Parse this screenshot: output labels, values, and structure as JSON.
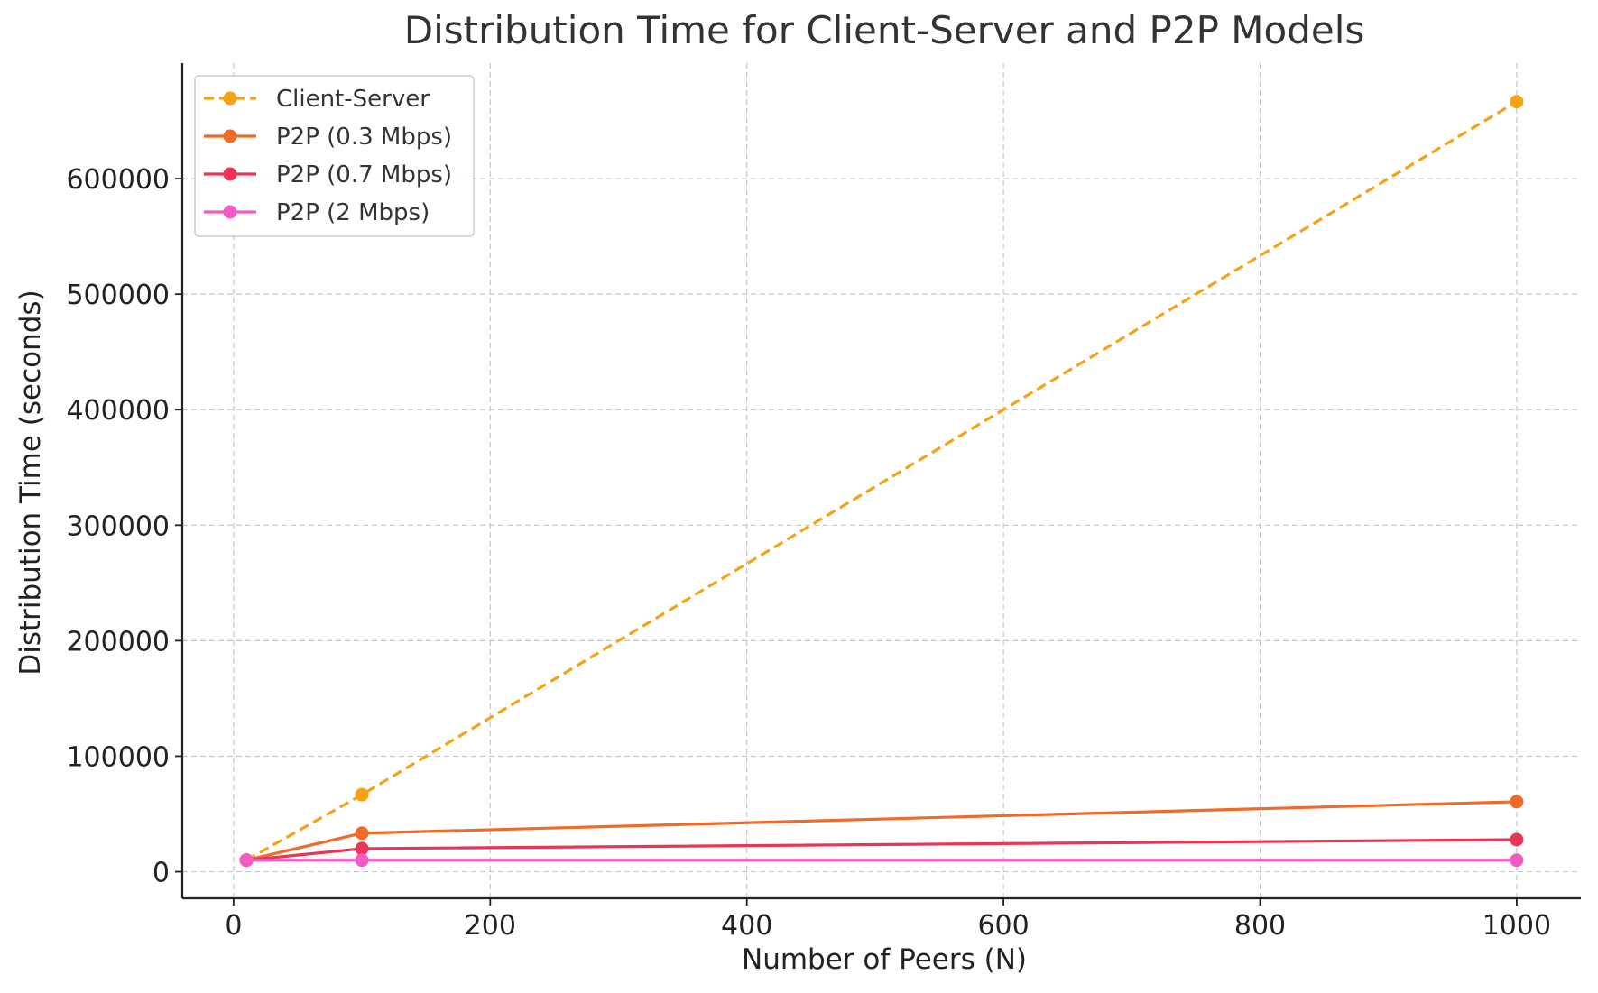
{
  "chart_data": {
    "type": "line",
    "title": "Distribution Time for Client-Server and P2P Models",
    "xlabel": "Number of Peers (N)",
    "ylabel": "Distribution Time (seconds)",
    "x": [
      10,
      100,
      1000
    ],
    "xlim": [
      -40,
      1050
    ],
    "ylim": [
      -23000,
      700000
    ],
    "xticks": [
      0,
      200,
      400,
      600,
      800,
      1000
    ],
    "xtick_labels": [
      "0",
      "200",
      "400",
      "600",
      "800",
      "1000"
    ],
    "yticks": [
      0,
      100000,
      200000,
      300000,
      400000,
      500000,
      600000
    ],
    "ytick_labels": [
      "0",
      "100000",
      "200000",
      "300000",
      "400000",
      "500000",
      "600000"
    ],
    "grid": true,
    "legend_position": "top-left",
    "series": [
      {
        "name": "Client-Server",
        "values": [
          10000,
          66667,
          666667
        ],
        "color": "#f5a316",
        "style": "dashed"
      },
      {
        "name": "P2P (0.3 Mbps)",
        "values": [
          10000,
          33333,
          60606
        ],
        "color": "#f06a28",
        "style": "solid"
      },
      {
        "name": "P2P (0.7 Mbps)",
        "values": [
          10000,
          20000,
          27778
        ],
        "color": "#ea3554",
        "style": "solid"
      },
      {
        "name": "P2P (2 Mbps)",
        "values": [
          10000,
          10000,
          10000
        ],
        "color": "#f25bc3",
        "style": "solid"
      }
    ]
  }
}
